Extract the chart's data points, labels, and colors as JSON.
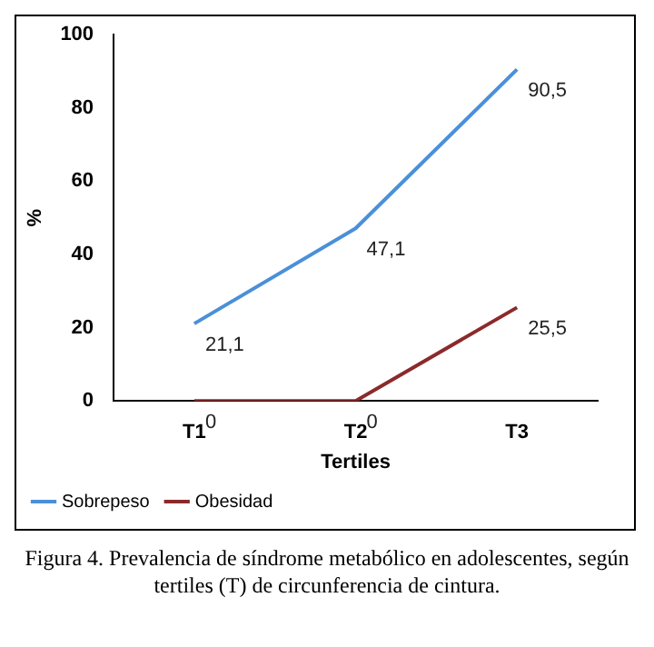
{
  "chart_data": {
    "type": "line",
    "xlabel": "Tertiles",
    "ylabel": "%",
    "categories": [
      "T1",
      "T2",
      "T3"
    ],
    "series": [
      {
        "name": "Sobrepeso",
        "color": "#4a90d9",
        "values": [
          21.1,
          47.1,
          90.5
        ],
        "value_labels": [
          "21,1",
          "47,1",
          "90,5"
        ]
      },
      {
        "name": "Obesidad",
        "color": "#8b2a2a",
        "values": [
          0,
          0,
          25.5
        ],
        "value_labels": [
          "0",
          "0",
          "25,5"
        ]
      }
    ],
    "ylim": [
      0,
      100
    ],
    "yticks": [
      0,
      20,
      40,
      60,
      80,
      100
    ],
    "grid": false,
    "legend": "bottom left",
    "marker": "none",
    "line_style": "solid",
    "annotations": [
      "Figura 4. Prevalencia de síndrome metabólico en adolescentes, según tertiles (T) de circunferencia de cintura."
    ]
  }
}
